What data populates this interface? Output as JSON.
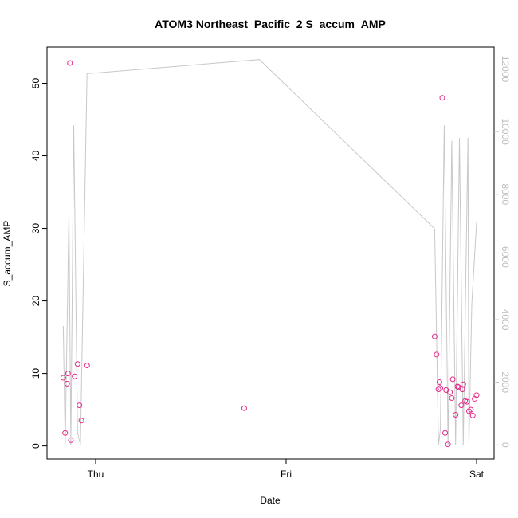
{
  "chart_data": {
    "type": "scatter",
    "title": "ATOM3 Northeast_Pacific_2 S_accum_AMP",
    "xlabel": "Date",
    "ylabel": "S_accum_AMP",
    "x_ticks": [
      "Thu",
      "Fri",
      "Sat"
    ],
    "y_ticks": [
      "0",
      "10",
      "20",
      "30",
      "40",
      "50"
    ],
    "y2_ticks": [
      "0",
      "2000",
      "4000",
      "6000",
      "8000",
      "10000",
      "12000"
    ],
    "x_range": [
      -0.17,
      2.03
    ],
    "ylim": [
      -1.8,
      55
    ],
    "y2lim": [
      -450,
      12700
    ],
    "grid": false,
    "colors": {
      "points": "#e7298a",
      "line": "#c8c8c8",
      "axis": "#000000",
      "right_axis": "#bdbdbd"
    },
    "series": [
      {
        "type": "scatter",
        "axis": "left",
        "x": [
          -0.17,
          -0.16,
          -0.15,
          -0.145,
          -0.135,
          -0.13,
          -0.11,
          -0.095,
          -0.085,
          -0.075,
          -0.045,
          0.78,
          1.78,
          1.79,
          1.8,
          1.805,
          1.81,
          1.82,
          1.835,
          1.84,
          1.85,
          1.86,
          1.87,
          1.875,
          1.89,
          1.9,
          1.905,
          1.92,
          1.925,
          1.93,
          1.94,
          1.95,
          1.96,
          1.97,
          1.98,
          1.99,
          2.0
        ],
        "y": [
          9.4,
          1.8,
          8.6,
          10.0,
          52.8,
          0.8,
          9.6,
          11.3,
          5.6,
          3.5,
          11.1,
          5.2,
          15.1,
          12.6,
          7.8,
          8.8,
          8.0,
          48.0,
          1.8,
          7.7,
          0.2,
          7.4,
          6.6,
          9.2,
          4.3,
          8.2,
          8.1,
          5.6,
          7.8,
          8.5,
          6.2,
          6.1,
          4.8,
          5.0,
          4.2,
          6.5,
          7.0
        ]
      },
      {
        "type": "line",
        "axis": "right",
        "x": [
          -0.17,
          -0.16,
          -0.14,
          -0.13,
          -0.115,
          -0.095,
          -0.08,
          -0.045,
          0.86,
          1.78,
          1.8,
          1.81,
          1.83,
          1.85,
          1.87,
          1.89,
          1.91,
          1.93,
          1.955,
          1.96,
          1.975,
          2.0
        ],
        "y": [
          3800,
          0,
          7400,
          0,
          10200,
          400,
          0,
          11850,
          12300,
          6900,
          0,
          500,
          10200,
          0,
          9700,
          0,
          9800,
          0,
          9800,
          0,
          4500,
          7100
        ]
      }
    ]
  }
}
